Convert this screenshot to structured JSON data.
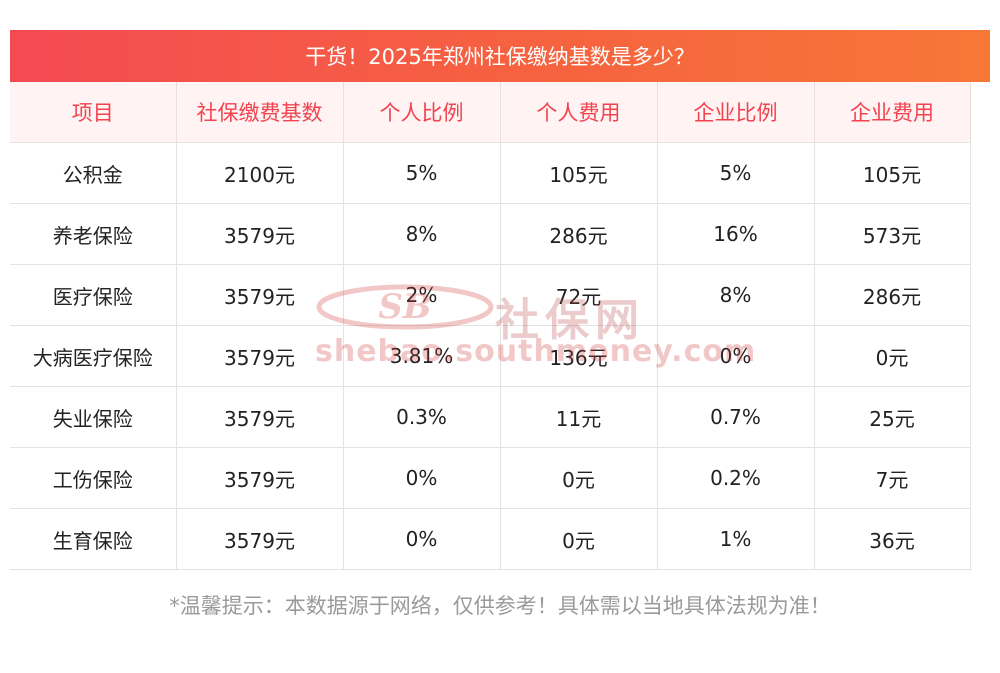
{
  "title": "干货！2025年郑州社保缴纳基数是多少？",
  "table": {
    "headers": [
      "项目",
      "社保缴费基数",
      "个人比例",
      "个人费用",
      "企业比例",
      "企业费用"
    ],
    "rows": [
      [
        "公积金",
        "2100元",
        "5%",
        "105元",
        "5%",
        "105元"
      ],
      [
        "养老保险",
        "3579元",
        "8%",
        "286元",
        "16%",
        "573元"
      ],
      [
        "医疗保险",
        "3579元",
        "2%",
        "72元",
        "8%",
        "286元"
      ],
      [
        "大病医疗保险",
        "3579元",
        "3.81%",
        "136元",
        "0%",
        "0元"
      ],
      [
        "失业保险",
        "3579元",
        "0.3%",
        "11元",
        "0.7%",
        "25元"
      ],
      [
        "工伤保险",
        "3579元",
        "0%",
        "0元",
        "0.2%",
        "7元"
      ],
      [
        "生育保险",
        "3579元",
        "0%",
        "0元",
        "1%",
        "36元"
      ]
    ]
  },
  "watermark": {
    "brand": "社保网",
    "url": "shebao.southmoney.com"
  },
  "footer": "*温馨提示：本数据源于网络，仅供参考！具体需以当地具体法规为准！",
  "colors": {
    "banner_start": "#f44a53",
    "banner_end": "#f77738",
    "header_bg": "#fff3f3",
    "header_text": "#f2434f"
  }
}
